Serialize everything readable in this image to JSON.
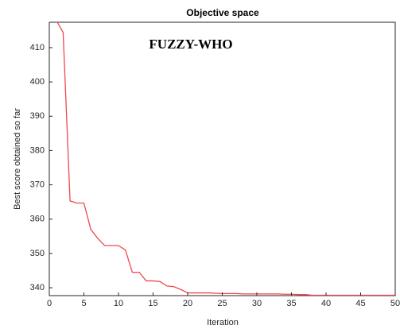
{
  "chart_data": {
    "type": "line",
    "title": "Objective space",
    "annotation": "FUZZY-WHO",
    "x_label": "Iteration",
    "y_label": "Best score obtained so far",
    "x": [
      1,
      2,
      3,
      4,
      5,
      6,
      7,
      8,
      9,
      10,
      11,
      12,
      13,
      14,
      15,
      16,
      17,
      18,
      19,
      20,
      21,
      22,
      23,
      24,
      25,
      26,
      27,
      28,
      29,
      30,
      31,
      32,
      33,
      34,
      35,
      36,
      37,
      38,
      39,
      40,
      41,
      42,
      43,
      44,
      45,
      46,
      47,
      48,
      49,
      50
    ],
    "series": [
      {
        "name": "FUZZY-WHO",
        "color": "#f0474f",
        "values": [
          418,
          414.4,
          365.3,
          364.7,
          364.7,
          357,
          354.4,
          352.3,
          352.3,
          352.3,
          351,
          344.5,
          344.5,
          342,
          342,
          341.8,
          340.5,
          340.3,
          339.5,
          338.5,
          338.5,
          338.5,
          338.5,
          338.4,
          338.3,
          338.3,
          338.3,
          338.2,
          338.2,
          338.2,
          338.2,
          338.2,
          338.2,
          338.1,
          338.1,
          338,
          338,
          337.8,
          337.8,
          337.8,
          337.8,
          337.8,
          337.8,
          337.8,
          337.8,
          337.8,
          337.8,
          337.8,
          337.8,
          337.8
        ]
      }
    ],
    "xlim": [
      0,
      50
    ],
    "ylim": [
      337.7,
      417.4
    ],
    "xticks": [
      0,
      5,
      10,
      15,
      20,
      25,
      30,
      35,
      40,
      45,
      50
    ],
    "yticks": [
      340,
      350,
      360,
      370,
      380,
      390,
      400,
      410
    ],
    "grid": false
  }
}
